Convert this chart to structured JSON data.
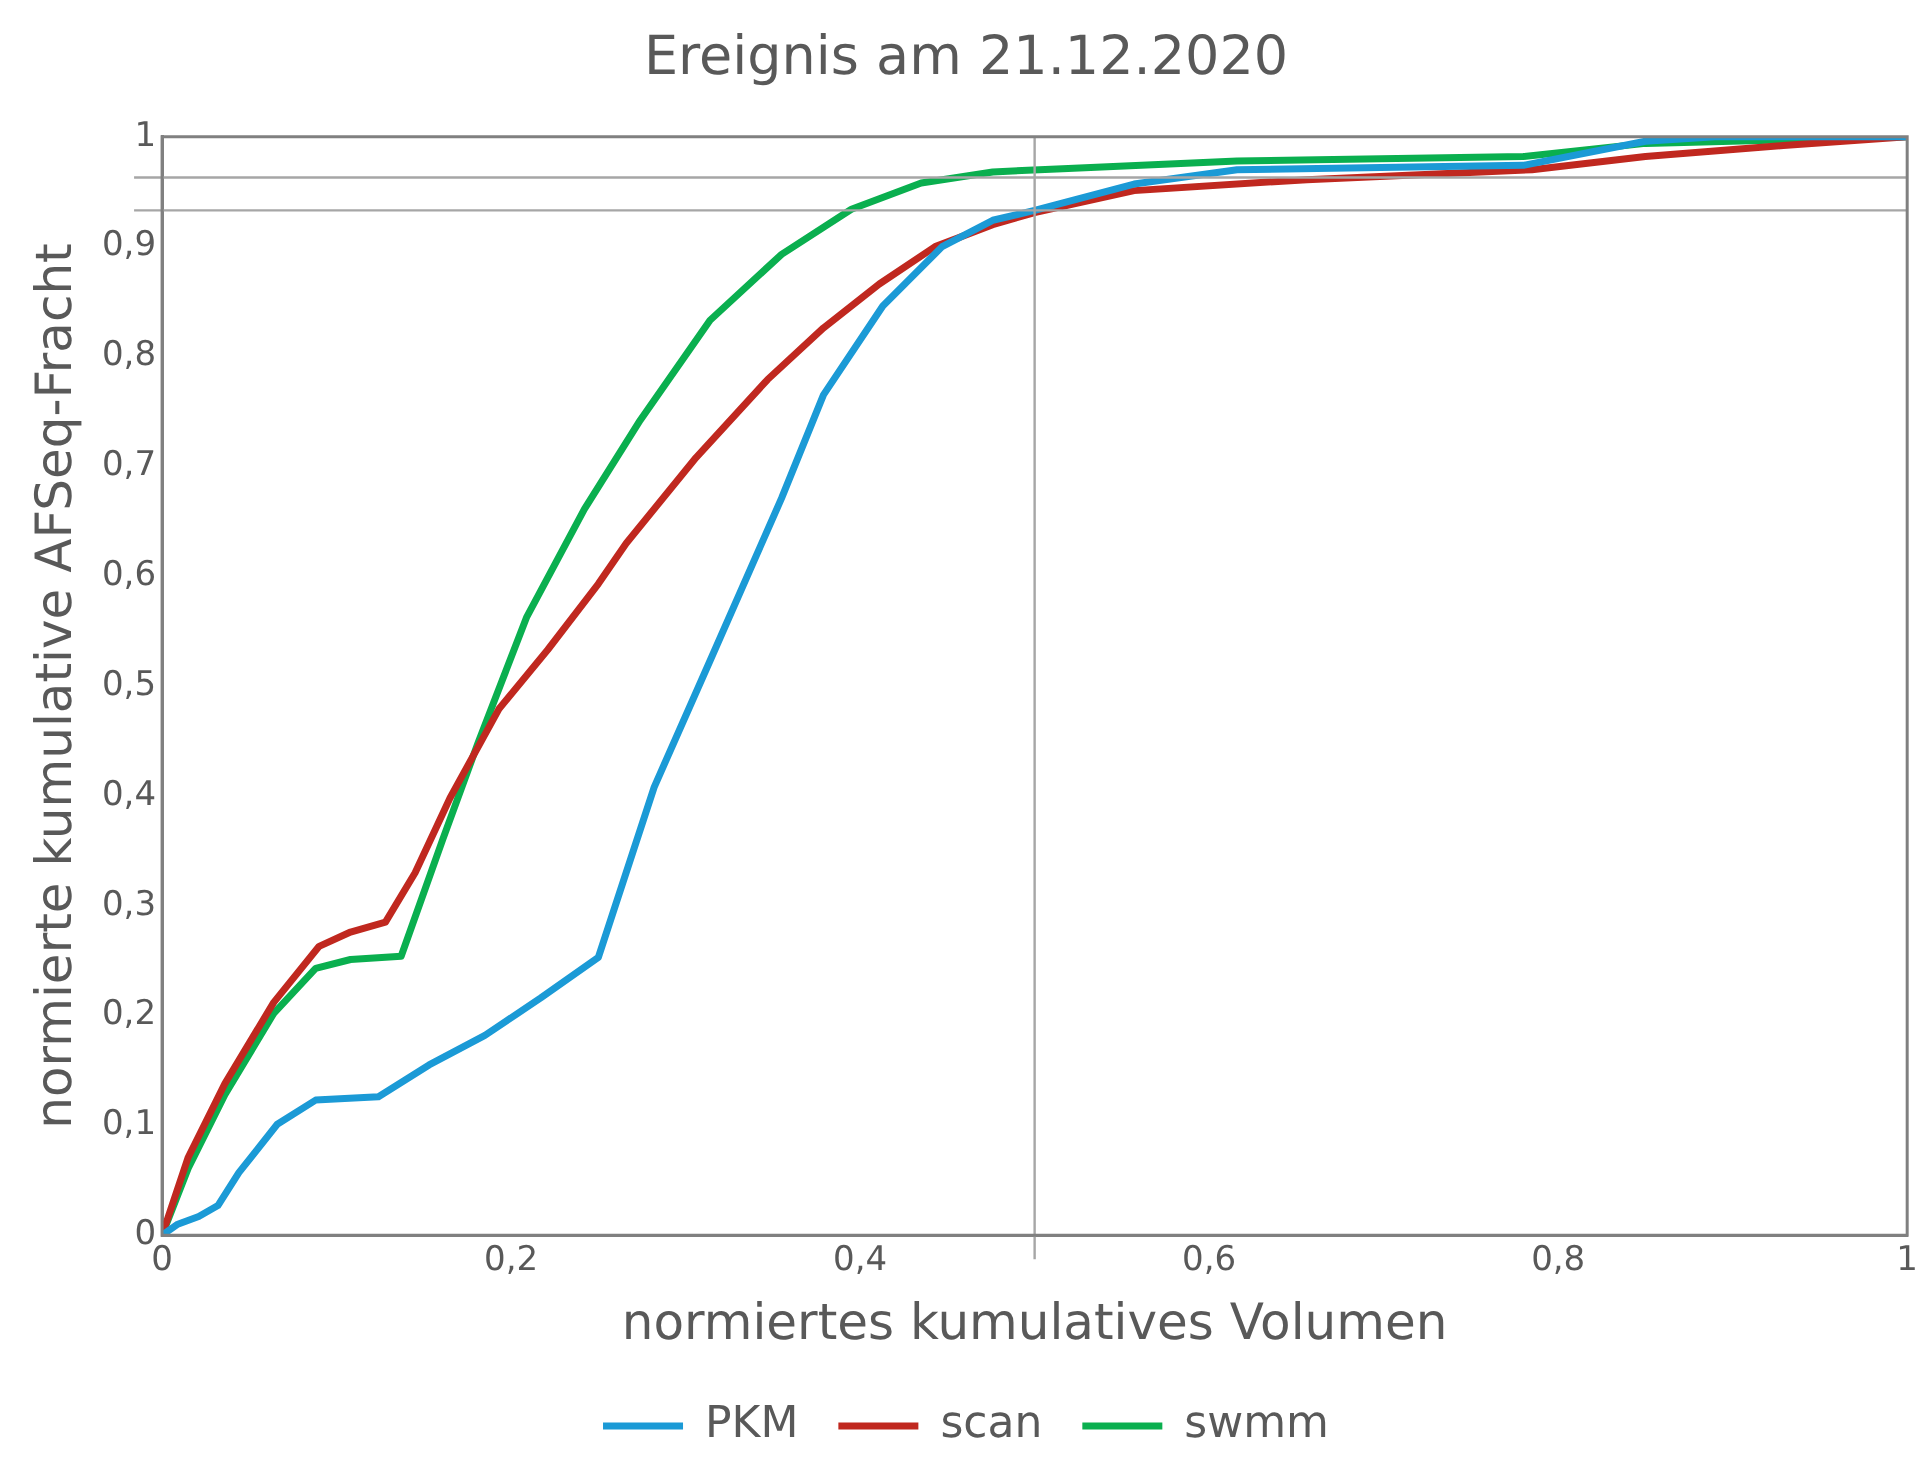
{
  "chart_data": {
    "type": "line",
    "title": "Ereignis am 21.12.2020",
    "xlabel": "normiertes kumulatives Volumen",
    "ylabel": "normierte kumulative AFSeq-Fracht",
    "xlim": [
      0,
      1
    ],
    "xticks": [
      0,
      {
        "value": 0.2,
        "label": "0,2"
      },
      {
        "value": 0.4,
        "label": "0,4"
      },
      {
        "value": 0.6,
        "label": "0,6"
      },
      {
        "value": 0.8,
        "label": "0,8"
      },
      1
    ],
    "ylim": [
      0,
      1
    ],
    "yticks": [
      0,
      {
        "value": 0.1,
        "label": "0,1"
      },
      {
        "value": 0.2,
        "label": "0,2"
      },
      {
        "value": 0.3,
        "label": "0,3"
      },
      {
        "value": 0.4,
        "label": "0,4"
      },
      {
        "value": 0.5,
        "label": "0,5"
      },
      {
        "value": 0.6,
        "label": "0,6"
      },
      {
        "value": 0.7,
        "label": "0,7"
      },
      {
        "value": 0.8,
        "label": "0,8"
      },
      {
        "value": 0.9,
        "label": "0,9"
      },
      1
    ],
    "grid": false,
    "legend": "bottom",
    "marker": "none",
    "line_style": "solid",
    "ref_lines": [
      {
        "axis": "x",
        "value": 0.5,
        "color": "#a6a6a6"
      },
      {
        "axis": "y",
        "value": 0.963,
        "color": "#a6a6a6"
      },
      {
        "axis": "y",
        "value": 0.933,
        "color": "#a6a6a6"
      }
    ],
    "series": [
      {
        "name": "PKM",
        "color": "#1b9ad6",
        "x": [
          0,
          0.009,
          0.021,
          0.032,
          0.044,
          0.066,
          0.088,
          0.124,
          0.153,
          0.185,
          0.217,
          0.25,
          0.282,
          0.314,
          0.355,
          0.379,
          0.413,
          0.447,
          0.476,
          0.5,
          0.557,
          0.616,
          0.78,
          0.85,
          0.89,
          1
        ],
        "values": [
          0,
          0.01,
          0.017,
          0.027,
          0.057,
          0.101,
          0.123,
          0.126,
          0.155,
          0.182,
          0.216,
          0.253,
          0.408,
          0.523,
          0.671,
          0.765,
          0.846,
          0.9,
          0.924,
          0.933,
          0.957,
          0.97,
          0.974,
          0.996,
          1,
          1
        ]
      },
      {
        "name": "scan",
        "color": "#c0281f",
        "x": [
          0,
          0.015,
          0.036,
          0.064,
          0.09,
          0.108,
          0.128,
          0.145,
          0.165,
          0.193,
          0.221,
          0.25,
          0.266,
          0.306,
          0.347,
          0.379,
          0.411,
          0.443,
          0.476,
          0.5,
          0.557,
          0.656,
          0.785,
          0.85,
          0.929,
          1
        ],
        "values": [
          0,
          0.071,
          0.138,
          0.212,
          0.263,
          0.276,
          0.285,
          0.33,
          0.398,
          0.479,
          0.533,
          0.593,
          0.63,
          0.708,
          0.779,
          0.826,
          0.866,
          0.9,
          0.92,
          0.931,
          0.951,
          0.961,
          0.97,
          0.982,
          0.992,
          1
        ]
      },
      {
        "name": "swmm",
        "color": "#0aaf4f",
        "x": [
          0,
          0.015,
          0.036,
          0.064,
          0.088,
          0.108,
          0.137,
          0.161,
          0.181,
          0.209,
          0.242,
          0.274,
          0.314,
          0.355,
          0.395,
          0.435,
          0.476,
          0.516,
          0.616,
          0.78,
          0.85,
          1
        ],
        "values": [
          0,
          0.061,
          0.128,
          0.202,
          0.243,
          0.251,
          0.254,
          0.361,
          0.448,
          0.563,
          0.661,
          0.742,
          0.833,
          0.893,
          0.934,
          0.958,
          0.968,
          0.971,
          0.978,
          0.982,
          0.994,
          1
        ]
      }
    ]
  }
}
